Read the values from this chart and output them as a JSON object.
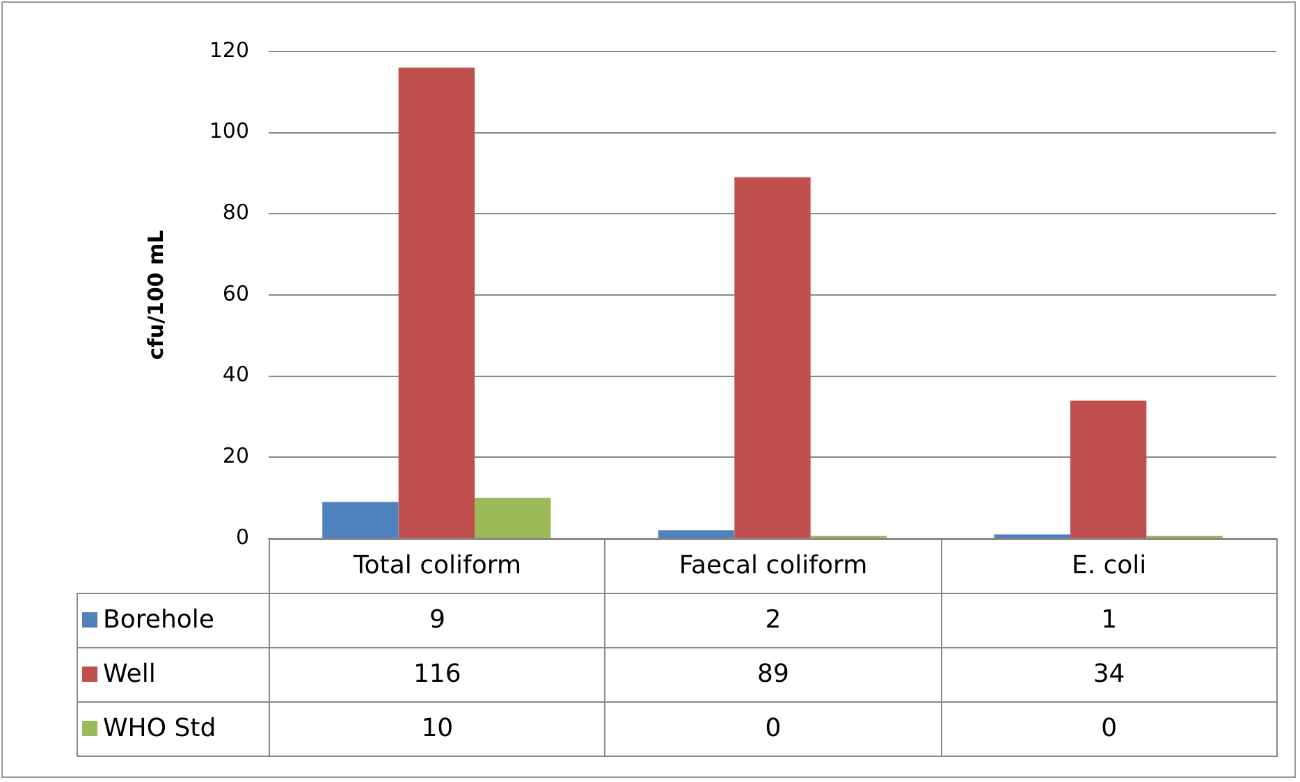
{
  "chart_data": {
    "type": "bar",
    "ylabel": "cfu/100 mL",
    "categories": [
      "Total coliform",
      "Faecal coliform",
      "E. coli"
    ],
    "series": [
      {
        "name": "Borehole",
        "color": "#4f81bd",
        "values": [
          9,
          2,
          1
        ]
      },
      {
        "name": "Well",
        "color": "#c0504d",
        "values": [
          116,
          89,
          34
        ]
      },
      {
        "name": "WHO Std",
        "color": "#9bbb59",
        "values": [
          10,
          0,
          0
        ]
      }
    ],
    "ylim": [
      0,
      120
    ],
    "yticks": [
      0,
      20,
      40,
      60,
      80,
      100,
      120
    ],
    "grid": "y",
    "legend": "bottom",
    "data_labels": true
  }
}
